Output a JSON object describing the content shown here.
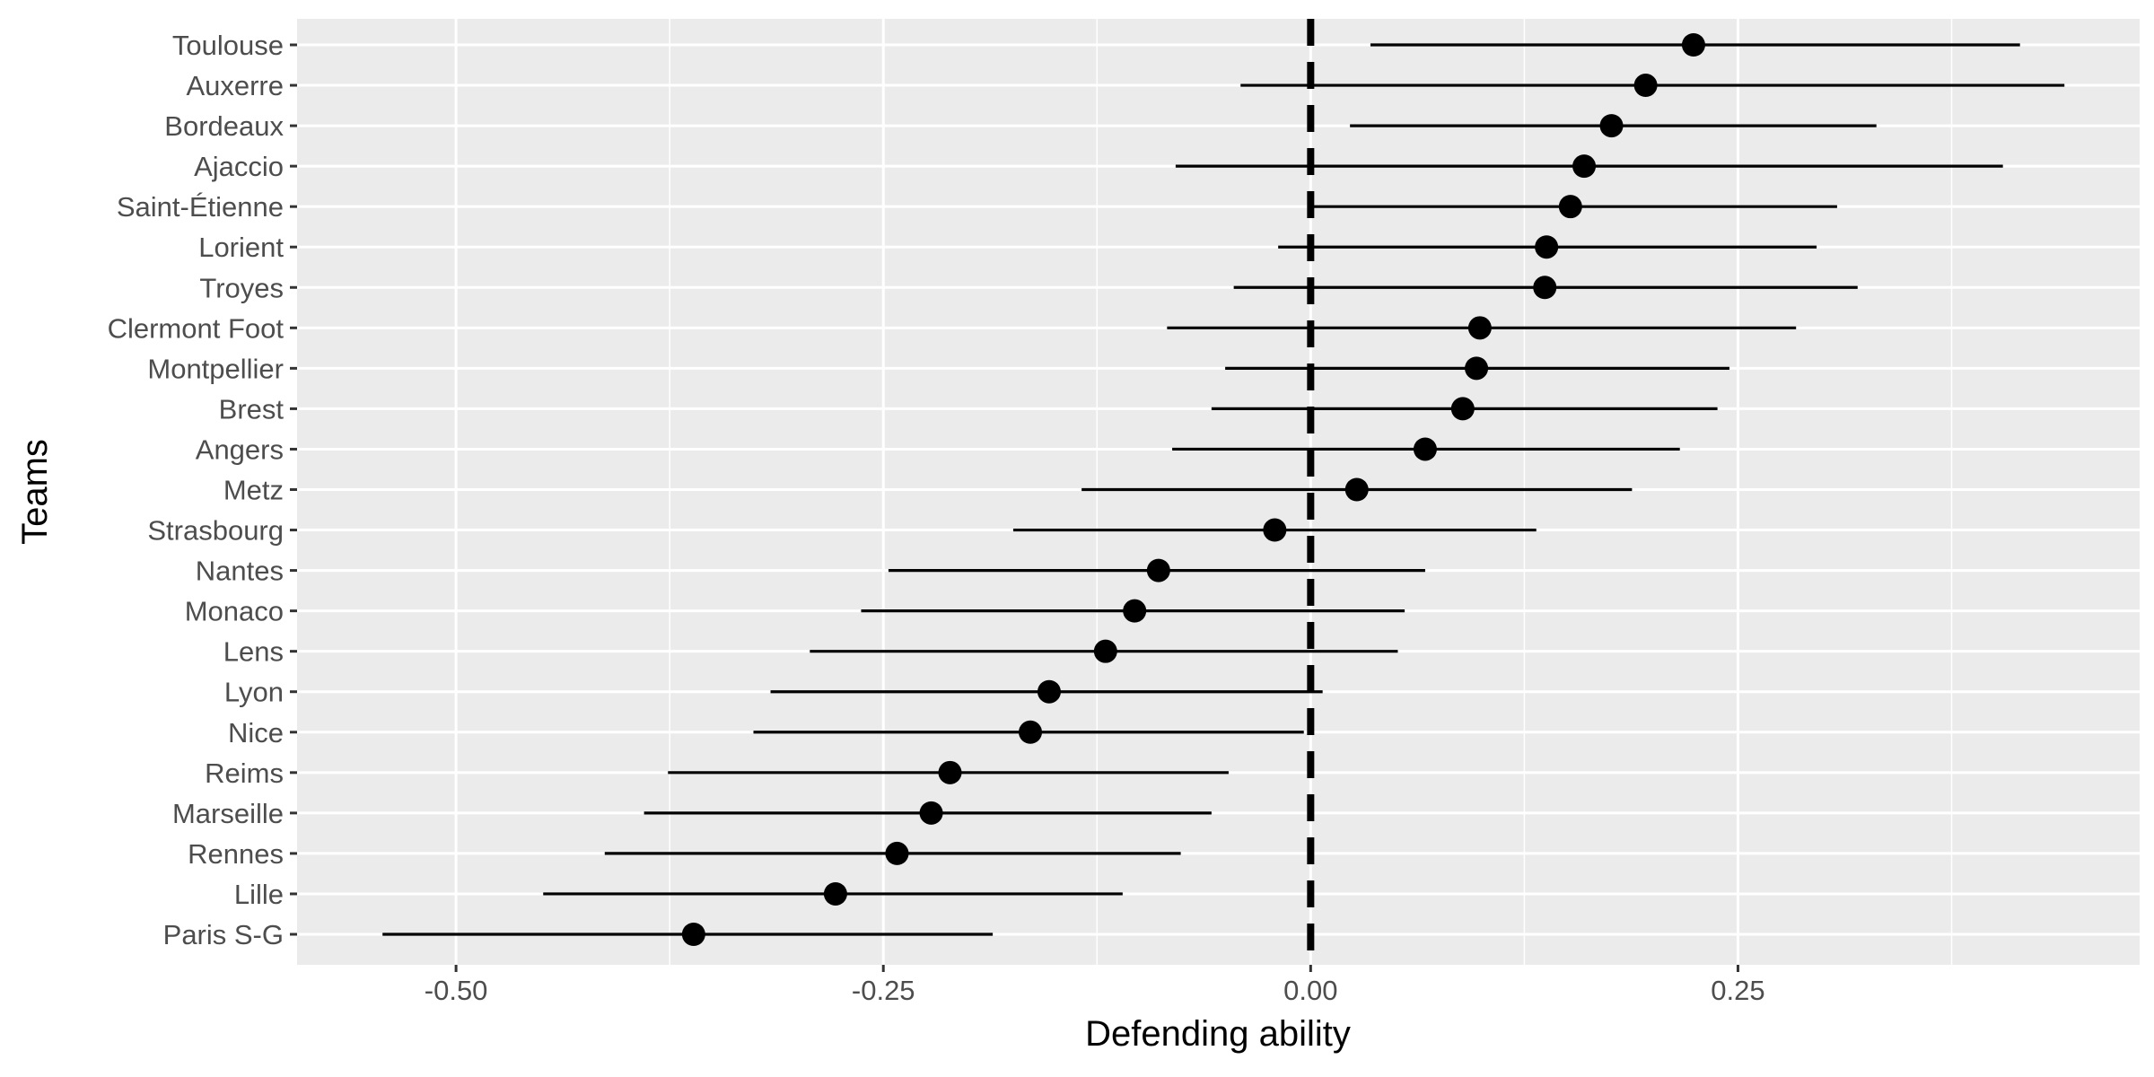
{
  "chart_data": {
    "type": "errorbar",
    "xlabel": "Defending ability",
    "ylabel": "Teams",
    "xlim": [
      -0.593,
      0.485
    ],
    "x_ticks": [
      {
        "value": -0.5,
        "label": "-0.50"
      },
      {
        "value": -0.25,
        "label": "-0.25"
      },
      {
        "value": 0.0,
        "label": "0.00"
      },
      {
        "value": 0.25,
        "label": "0.25"
      }
    ],
    "x_minor_ticks": [
      -0.375,
      -0.125,
      0.125,
      0.375
    ],
    "reference_line": {
      "x": 0.0,
      "style": "dashed"
    },
    "grid": true,
    "teams": [
      {
        "name": "Toulouse",
        "estimate": 0.224,
        "low": 0.035,
        "high": 0.415
      },
      {
        "name": "Auxerre",
        "estimate": 0.196,
        "low": -0.041,
        "high": 0.441
      },
      {
        "name": "Bordeaux",
        "estimate": 0.176,
        "low": 0.023,
        "high": 0.331
      },
      {
        "name": "Ajaccio",
        "estimate": 0.16,
        "low": -0.079,
        "high": 0.405
      },
      {
        "name": "Saint-Étienne",
        "estimate": 0.152,
        "low": -0.002,
        "high": 0.308
      },
      {
        "name": "Lorient",
        "estimate": 0.138,
        "low": -0.019,
        "high": 0.296
      },
      {
        "name": "Troyes",
        "estimate": 0.137,
        "low": -0.045,
        "high": 0.32
      },
      {
        "name": "Clermont Foot",
        "estimate": 0.099,
        "low": -0.084,
        "high": 0.284
      },
      {
        "name": "Montpellier",
        "estimate": 0.097,
        "low": -0.05,
        "high": 0.245
      },
      {
        "name": "Brest",
        "estimate": 0.089,
        "low": -0.058,
        "high": 0.238
      },
      {
        "name": "Angers",
        "estimate": 0.067,
        "low": -0.081,
        "high": 0.216
      },
      {
        "name": "Metz",
        "estimate": 0.027,
        "low": -0.134,
        "high": 0.188
      },
      {
        "name": "Strasbourg",
        "estimate": -0.021,
        "low": -0.174,
        "high": 0.132
      },
      {
        "name": "Nantes",
        "estimate": -0.089,
        "low": -0.247,
        "high": 0.067
      },
      {
        "name": "Monaco",
        "estimate": -0.103,
        "low": -0.263,
        "high": 0.055
      },
      {
        "name": "Lens",
        "estimate": -0.12,
        "low": -0.293,
        "high": 0.051
      },
      {
        "name": "Lyon",
        "estimate": -0.153,
        "low": -0.316,
        "high": 0.007
      },
      {
        "name": "Nice",
        "estimate": -0.164,
        "low": -0.326,
        "high": -0.004
      },
      {
        "name": "Reims",
        "estimate": -0.211,
        "low": -0.376,
        "high": -0.048
      },
      {
        "name": "Marseille",
        "estimate": -0.222,
        "low": -0.39,
        "high": -0.058
      },
      {
        "name": "Rennes",
        "estimate": -0.242,
        "low": -0.413,
        "high": -0.076
      },
      {
        "name": "Lille",
        "estimate": -0.278,
        "low": -0.449,
        "high": -0.11
      },
      {
        "name": "Paris S-G",
        "estimate": -0.361,
        "low": -0.543,
        "high": -0.186
      }
    ]
  }
}
